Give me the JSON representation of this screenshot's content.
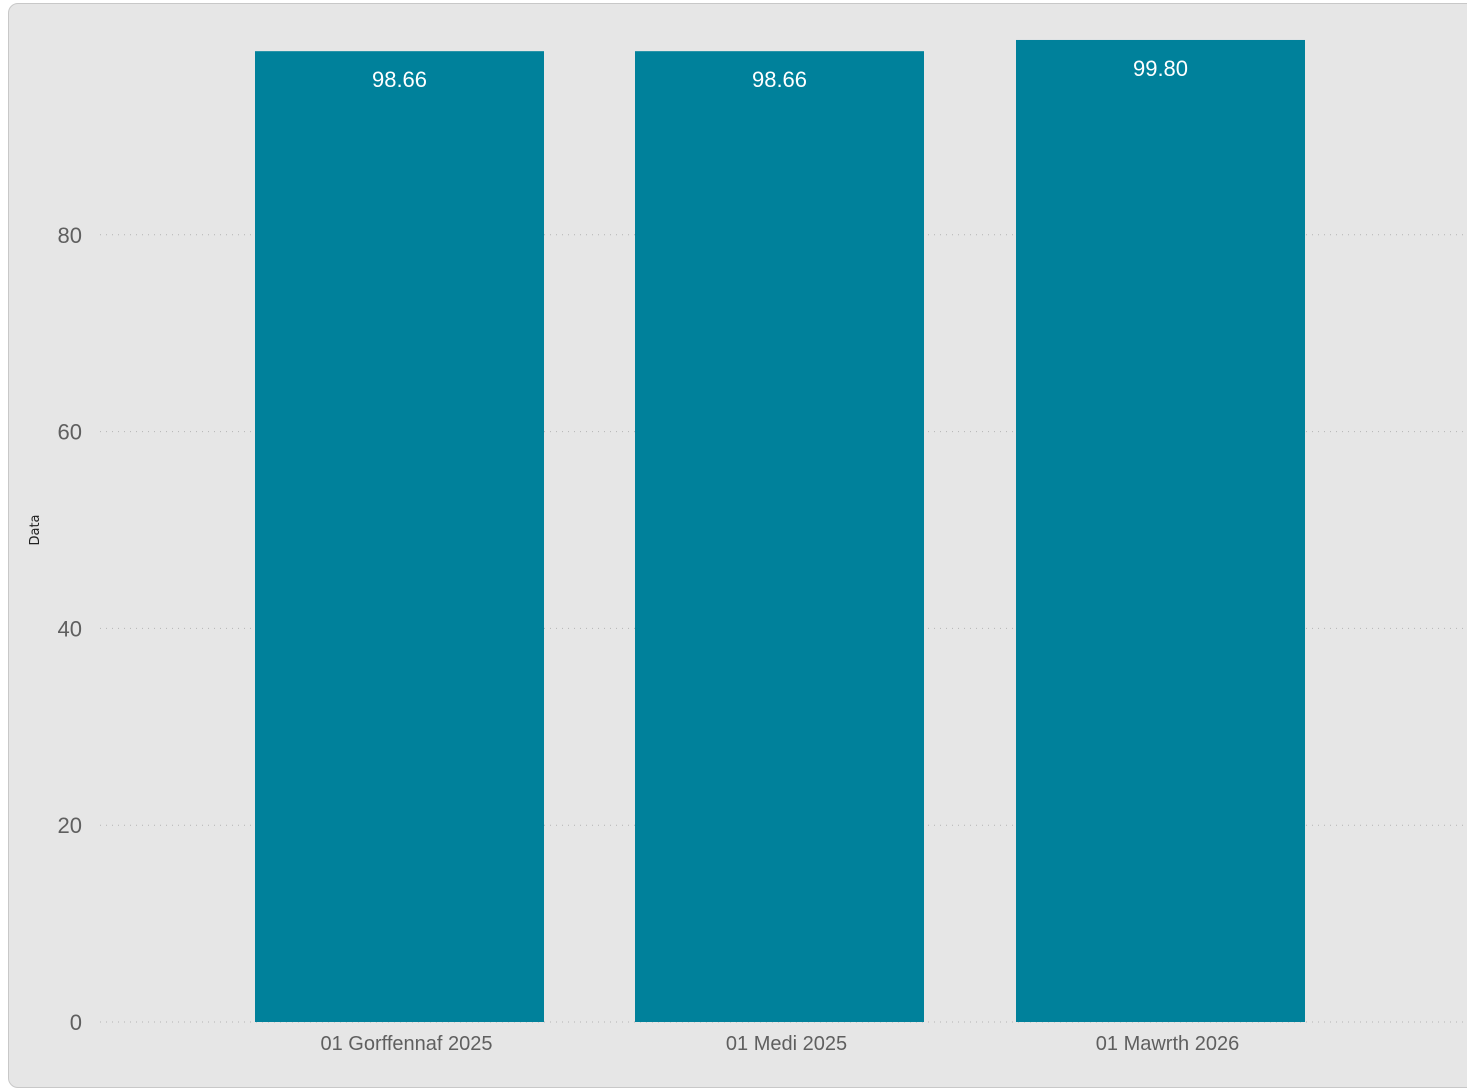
{
  "chart_data": {
    "type": "bar",
    "categories": [
      "01 Gorffennaf 2025",
      "01 Medi 2025",
      "01 Mawrth 2026"
    ],
    "values": [
      98.66,
      98.66,
      99.8
    ],
    "data_labels": [
      "98.66",
      "98.66",
      "99.80"
    ],
    "xlabel": "",
    "ylabel": "Data",
    "ylim": [
      0,
      100
    ],
    "yticks": [
      0,
      20,
      40,
      60,
      80
    ],
    "grid": true,
    "bar_color": "#00819b",
    "background_color": "#e6e6e6"
  }
}
